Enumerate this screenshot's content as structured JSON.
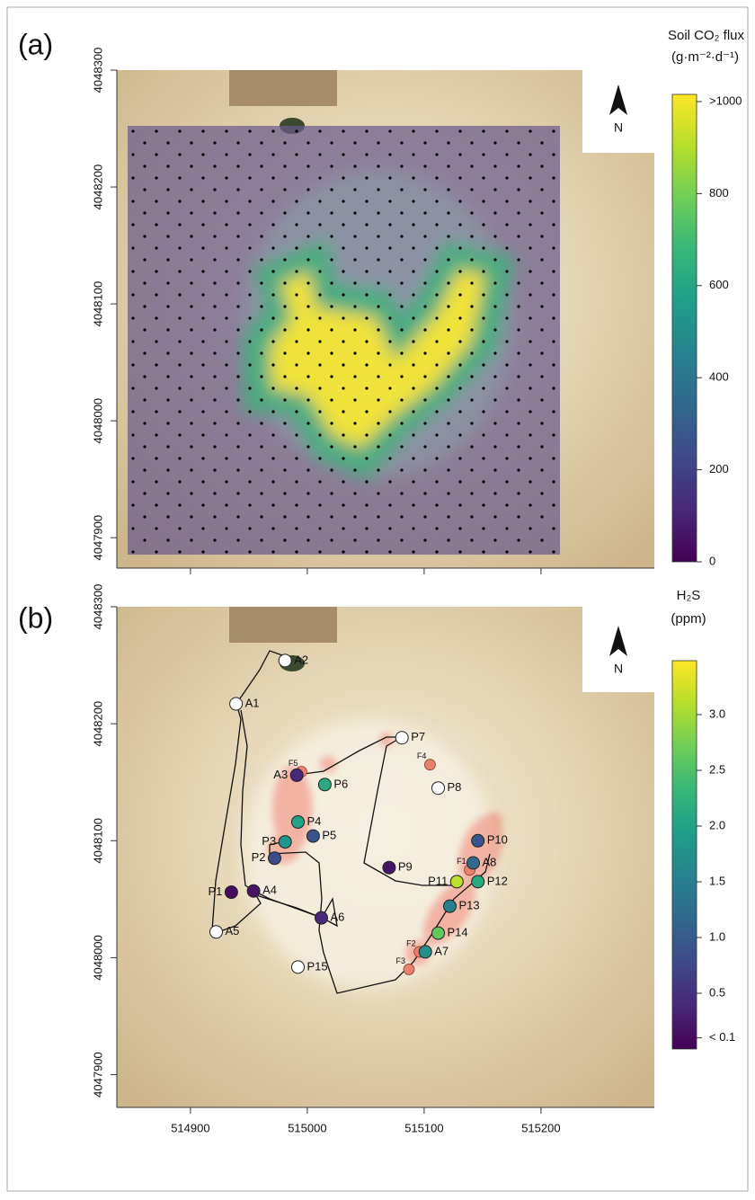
{
  "chart_data": [
    {
      "type": "map",
      "label": "(a)",
      "xlim": [
        514837,
        515297
      ],
      "ylim": [
        4047874,
        4048300
      ],
      "yticks": [
        4047900,
        4048000,
        4048100,
        4048200,
        4048300
      ],
      "north_label": "N",
      "colorbar": {
        "title": [
          "Soil CO₂ flux",
          "(g·m⁻²·d⁻¹)"
        ],
        "clim": [
          0,
          1000
        ],
        "ticks": [
          0,
          200,
          400,
          600,
          800,
          {
            "value": 1000,
            "label": ">1000"
          }
        ]
      }
    },
    {
      "type": "map",
      "label": "(b)",
      "xlim": [
        514837,
        515297
      ],
      "ylim": [
        4047872,
        4048300
      ],
      "xticks": [
        514900,
        515000,
        515100,
        515200
      ],
      "yticks": [
        4047900,
        4048000,
        4048100,
        4048200,
        4048300
      ],
      "north_label": "N",
      "points": {
        "names": [
          "A2",
          "A1",
          "P7",
          "P8",
          "A3",
          "P6",
          "P4",
          "P5",
          "P3",
          "P2",
          "P10",
          "A8",
          "P9",
          "P11",
          "P12",
          "P1",
          "A4",
          "A6",
          "P13",
          "A5",
          "P14",
          "A7",
          "P15"
        ],
        "x": [
          514981,
          514939,
          515081,
          515112,
          514991,
          515015,
          514992,
          515005,
          514981,
          514972,
          515146,
          515142,
          515070,
          515128,
          515146,
          514935,
          514954,
          515012,
          515122,
          514922,
          515112,
          515101,
          514992
        ],
        "y": [
          4048254,
          4048217,
          4048188,
          4048145,
          4048156,
          4048148,
          4048116,
          4048104,
          4048099,
          4048085,
          4048100,
          4048081,
          4048077,
          4048065,
          4048065,
          4048056,
          4048057,
          4048034,
          4048044,
          4048022,
          4048021,
          4048005,
          4047992
        ],
        "values": [
          null,
          null,
          null,
          null,
          0.4,
          2.1,
          2.0,
          0.9,
          1.8,
          0.8,
          0.9,
          1.2,
          0.2,
          3.1,
          2.1,
          0.1,
          0.2,
          0.4,
          1.5,
          null,
          2.6,
          1.7,
          null
        ]
      },
      "fumaroles": {
        "names": [
          "F1",
          "F2",
          "F3",
          "F4",
          "F5"
        ],
        "x": [
          515139,
          515096,
          515087,
          515105,
          514995
        ],
        "y": [
          4048075,
          4048005,
          4047990,
          4048165,
          4048159
        ]
      },
      "colorbar": {
        "title": [
          "H₂S",
          "(ppm)"
        ],
        "clim": [
          0,
          3.45
        ],
        "ticks": [
          {
            "value": 0.1,
            "label": "< 0.1"
          },
          0.5,
          {
            "value": 1,
            "label": "1.0"
          },
          1.5,
          {
            "value": 2,
            "label": "2.0"
          },
          2.5,
          {
            "value": 3,
            "label": "3.0"
          }
        ]
      }
    }
  ]
}
